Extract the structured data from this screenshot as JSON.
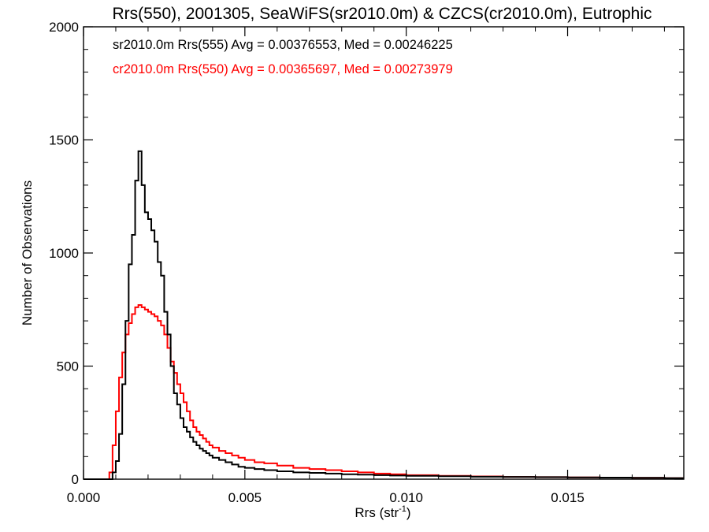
{
  "chart_data": {
    "type": "line",
    "title": "Rrs(550), 2001305, SeaWiFS(sr2010.0m) & CZCS(cr2010.0m), Eutrophic",
    "xlabel": "Rrs (str",
    "xlabel_superscript": "-1",
    "xlabel_suffix": ")",
    "ylabel": "Number of Observations",
    "xlim": [
      0.0,
      0.0186
    ],
    "ylim": [
      0,
      2000
    ],
    "x_ticks": [
      0.0,
      0.005,
      0.01,
      0.015
    ],
    "x_tick_labels": [
      "0.000",
      "0.005",
      "0.010",
      "0.015"
    ],
    "y_ticks": [
      0,
      500,
      1000,
      1500,
      2000
    ],
    "y_tick_labels": [
      "0",
      "500",
      "1000",
      "1500",
      "2000"
    ],
    "grid": false,
    "legend_position": "top-left",
    "series": [
      {
        "name": "sr2010.0m Rrs(555) Avg = 0.00376553, Med = 0.00246225",
        "color": "#000000",
        "x": [
          0.0,
          0.0008,
          0.0009,
          0.001,
          0.0011,
          0.0012,
          0.0013,
          0.0014,
          0.0015,
          0.0016,
          0.0017,
          0.0018,
          0.0019,
          0.002,
          0.0021,
          0.0022,
          0.0023,
          0.0024,
          0.0025,
          0.0026,
          0.0027,
          0.0028,
          0.0029,
          0.003,
          0.0031,
          0.0032,
          0.0033,
          0.0034,
          0.0035,
          0.0036,
          0.0037,
          0.0038,
          0.0039,
          0.004,
          0.0042,
          0.0044,
          0.0046,
          0.0048,
          0.005,
          0.0053,
          0.0056,
          0.006,
          0.0065,
          0.007,
          0.0075,
          0.008,
          0.0085,
          0.009,
          0.0095,
          0.01,
          0.011,
          0.012,
          0.013,
          0.014,
          0.015,
          0.016,
          0.017,
          0.018,
          0.0186
        ],
        "y": [
          0,
          0,
          30,
          80,
          200,
          420,
          700,
          950,
          1080,
          1320,
          1450,
          1300,
          1180,
          1150,
          1100,
          1050,
          960,
          900,
          740,
          640,
          500,
          380,
          330,
          270,
          230,
          210,
          185,
          165,
          150,
          135,
          125,
          115,
          105,
          95,
          85,
          75,
          65,
          55,
          50,
          45,
          40,
          35,
          30,
          28,
          25,
          22,
          20,
          18,
          16,
          15,
          13,
          11,
          10,
          9,
          8,
          7,
          6,
          5,
          5
        ]
      },
      {
        "name": "cr2010.0m Rrs(550) Avg = 0.00365697, Med = 0.00273979",
        "color": "#ff0000",
        "x": [
          0.0,
          0.0007,
          0.0008,
          0.0009,
          0.001,
          0.0011,
          0.0012,
          0.0013,
          0.0014,
          0.0015,
          0.0016,
          0.0017,
          0.0018,
          0.0019,
          0.002,
          0.0021,
          0.0022,
          0.0023,
          0.0024,
          0.0025,
          0.0026,
          0.0027,
          0.0028,
          0.0029,
          0.003,
          0.0031,
          0.0032,
          0.0033,
          0.0034,
          0.0035,
          0.0036,
          0.0037,
          0.0038,
          0.0039,
          0.004,
          0.0042,
          0.0044,
          0.0046,
          0.0048,
          0.005,
          0.0053,
          0.0056,
          0.006,
          0.0065,
          0.007,
          0.0075,
          0.008,
          0.0085,
          0.009,
          0.0095,
          0.01,
          0.011,
          0.012,
          0.013,
          0.014,
          0.015,
          0.016,
          0.017,
          0.018,
          0.0186
        ],
        "y": [
          0,
          0,
          30,
          150,
          300,
          450,
          560,
          640,
          690,
          730,
          760,
          770,
          760,
          750,
          740,
          730,
          720,
          700,
          680,
          640,
          580,
          520,
          470,
          420,
          380,
          340,
          300,
          260,
          230,
          210,
          195,
          180,
          165,
          150,
          140,
          125,
          115,
          105,
          95,
          85,
          75,
          70,
          60,
          50,
          45,
          40,
          35,
          30,
          25,
          22,
          18,
          15,
          12,
          10,
          9,
          8,
          7,
          6,
          5,
          5
        ]
      }
    ]
  }
}
